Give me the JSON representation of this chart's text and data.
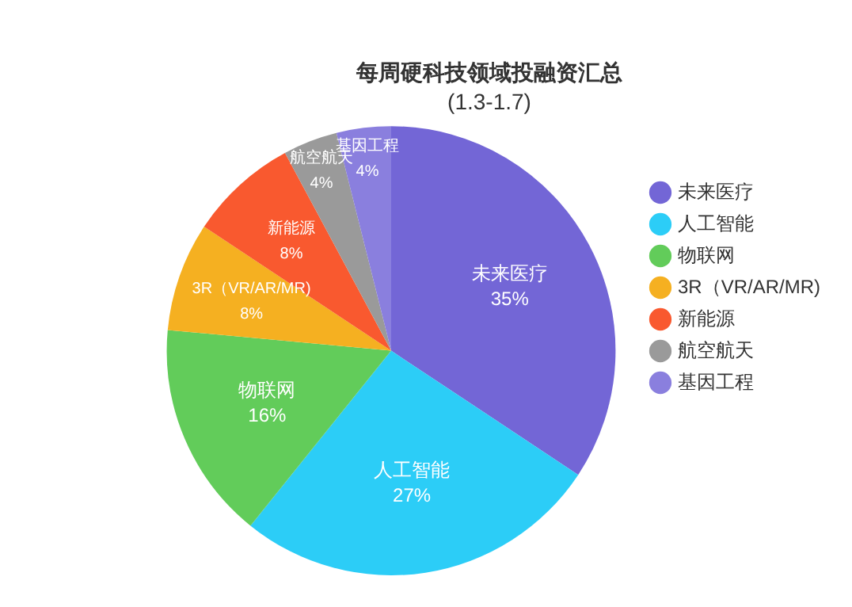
{
  "chart_data": {
    "type": "pie",
    "title": "每周硬科技领域投融资汇总",
    "subtitle": "(1.3-1.7)",
    "categories": [
      "未来医疗",
      "人工智能",
      "物联网",
      "3R（VR/AR/MR)",
      "新能源",
      "航空航天",
      "基因工程"
    ],
    "values": [
      35,
      27,
      16,
      8,
      8,
      4,
      4
    ],
    "colors": [
      "#7366d6",
      "#2ccdf7",
      "#62cc5a",
      "#f5b021",
      "#f9592f",
      "#9a9a9a",
      "#8a7fde"
    ],
    "value_labels": [
      "35%",
      "27%",
      "16%",
      "8%",
      "8%",
      "4%",
      "4%"
    ],
    "data_labels": true,
    "legend": "right"
  }
}
